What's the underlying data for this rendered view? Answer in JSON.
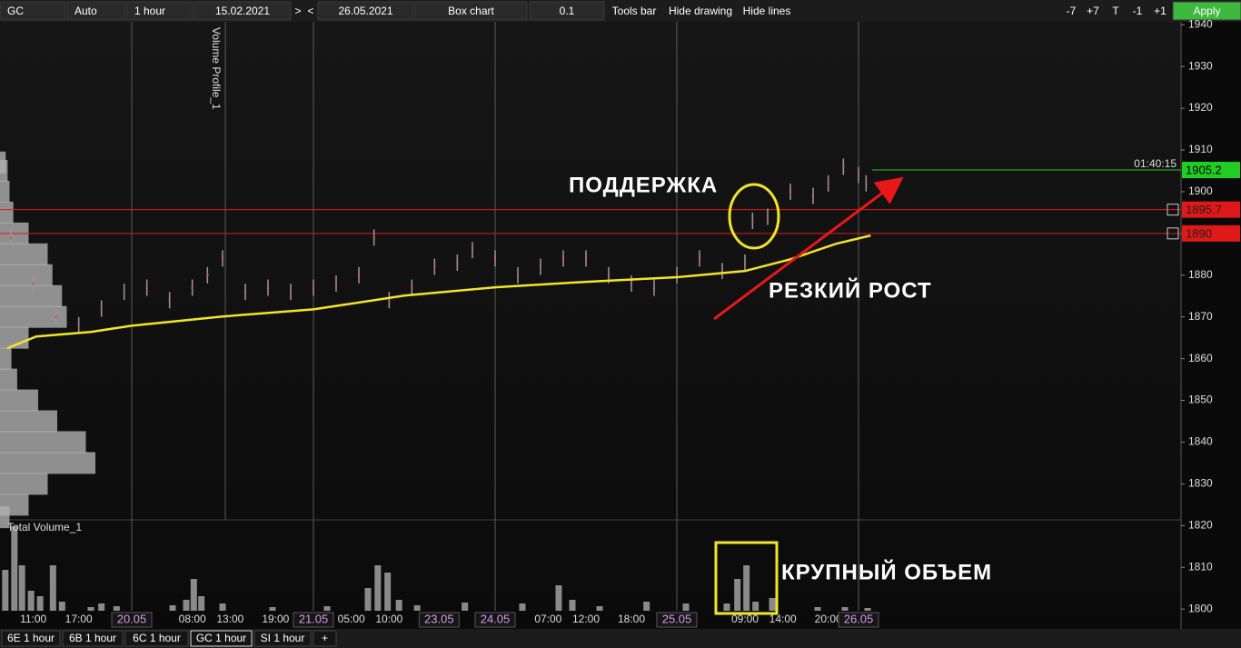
{
  "toolbar": {
    "items": [
      "GC",
      "Auto",
      "1 hour",
      "15.02.2021",
      ">",
      "<",
      "26.05.2021",
      "Box chart",
      "0.1",
      "Tools bar",
      "Hide drawing",
      "Hide lines",
      "-7",
      "+7",
      "T",
      "-1",
      "+1",
      "Apply"
    ]
  },
  "tabs": [
    "6E 1 hour",
    "6B 1 hour",
    "6C 1 hour",
    "GC 1 hour",
    "SI 1 hour",
    "+"
  ],
  "chart_data": {
    "type": "box",
    "panel_labels": [
      "Volume Profile_1",
      "Total Volume_1"
    ],
    "annotations": [
      "ПОДДЕРЖКА",
      "РЕЗКИЙ РОСТ",
      "КРУПНЫЙ ОБЪЕМ"
    ],
    "timer": "01:40:15",
    "ylim": [
      1799.6,
      1940.7
    ],
    "yticks": [
      1800,
      1810,
      1820,
      1830,
      1840,
      1850,
      1860,
      1870,
      1880,
      1890,
      1900,
      1910,
      1920,
      1930,
      1940
    ],
    "xlim": [
      -17.4,
      138.6
    ],
    "xticks": [
      {
        "value": -13,
        "label": "11:00"
      },
      {
        "value": -7,
        "label": "17:00"
      },
      {
        "value": 0,
        "label": "20.05"
      },
      {
        "value": 8,
        "label": "08:00"
      },
      {
        "value": 13,
        "label": "13:00"
      },
      {
        "value": 19,
        "label": "19:00"
      },
      {
        "value": 24,
        "label": "21.05"
      },
      {
        "value": 29,
        "label": "05:00"
      },
      {
        "value": 34,
        "label": "10:00"
      },
      {
        "value": 40.6,
        "label": "23.05"
      },
      {
        "value": 48,
        "label": "24.05"
      },
      {
        "value": 55,
        "label": "07:00"
      },
      {
        "value": 60,
        "label": "12:00"
      },
      {
        "value": 66,
        "label": "18:00"
      },
      {
        "value": 72,
        "label": "25.05"
      },
      {
        "value": 81,
        "label": "09:00"
      },
      {
        "value": 86,
        "label": "14:00"
      },
      {
        "value": 92,
        "label": "20:00"
      },
      {
        "value": 96,
        "label": "26.05"
      }
    ],
    "price": {
      "color": "#9a9a9a",
      "x": [
        -16,
        -13,
        -10,
        -7,
        -4,
        -1,
        2,
        5,
        8,
        10,
        12,
        15,
        18,
        21,
        24,
        27,
        30,
        32,
        34,
        37,
        40,
        43,
        45,
        48,
        51,
        54,
        57,
        60,
        63,
        66,
        69,
        72,
        75,
        78,
        81,
        82,
        84,
        87,
        90,
        92,
        94,
        96,
        97
      ],
      "values": [
        1889,
        1878,
        1870,
        1868,
        1872,
        1876,
        1877,
        1874,
        1877,
        1880,
        1884,
        1876,
        1877,
        1876,
        1877,
        1878,
        1880,
        1889,
        1874,
        1877,
        1882,
        1883,
        1886,
        1884,
        1880,
        1882,
        1884,
        1884,
        1880,
        1878,
        1877,
        1880,
        1884,
        1881,
        1883,
        1893,
        1894,
        1900,
        1899,
        1902,
        1906,
        1904,
        1902
      ]
    },
    "ma": {
      "color": "#f2e52a",
      "x": [
        -16.44,
        -12.6,
        -5.4,
        0,
        12,
        24,
        36,
        48,
        60,
        72,
        81,
        87,
        93,
        97.6
      ],
      "values": [
        1862.5,
        1865.3,
        1866.4,
        1867.9,
        1870.1,
        1871.8,
        1875.1,
        1877.1,
        1878.4,
        1879.5,
        1881.0,
        1883.8,
        1887.5,
        1889.5
      ]
    },
    "levels": {
      "values": [
        1905.2,
        1895.7,
        1890
      ],
      "colors": [
        "#22cc22",
        "#e01818",
        "#e01818"
      ]
    },
    "volume": {
      "color": "#8a8a8a",
      "x": [
        -16.7,
        -15.5,
        -14.5,
        -13.3,
        -12.1,
        -10.4,
        -9.2,
        -5.4,
        -4,
        -2,
        5.4,
        7.2,
        8.2,
        9.2,
        12,
        18.6,
        25.8,
        31.2,
        32.5,
        33.8,
        35.3,
        37.7,
        44,
        51.6,
        56.4,
        58.2,
        61.8,
        68,
        73.2,
        78.6,
        80,
        81.2,
        82.4,
        84.6,
        90.6,
        94.2,
        97.2
      ],
      "values": [
        45,
        93,
        50,
        22,
        16,
        50,
        10,
        4,
        8,
        5,
        6,
        12,
        35,
        16,
        8,
        4,
        5,
        25,
        50,
        42,
        12,
        6,
        9,
        8,
        28,
        12,
        5,
        10,
        8,
        8,
        35,
        50,
        10,
        14,
        4,
        4,
        3
      ]
    },
    "profile": {
      "color": "#b0b0b0",
      "prices": [
        1907,
        1905,
        1900,
        1895,
        1890,
        1885,
        1880,
        1875,
        1870,
        1865,
        1860,
        1855,
        1850,
        1845,
        1840,
        1835,
        1830,
        1825,
        1822
      ],
      "values": [
        6,
        8,
        10,
        14,
        30,
        50,
        55,
        65,
        70,
        30,
        12,
        18,
        40,
        60,
        90,
        100,
        50,
        30,
        10
      ]
    }
  }
}
